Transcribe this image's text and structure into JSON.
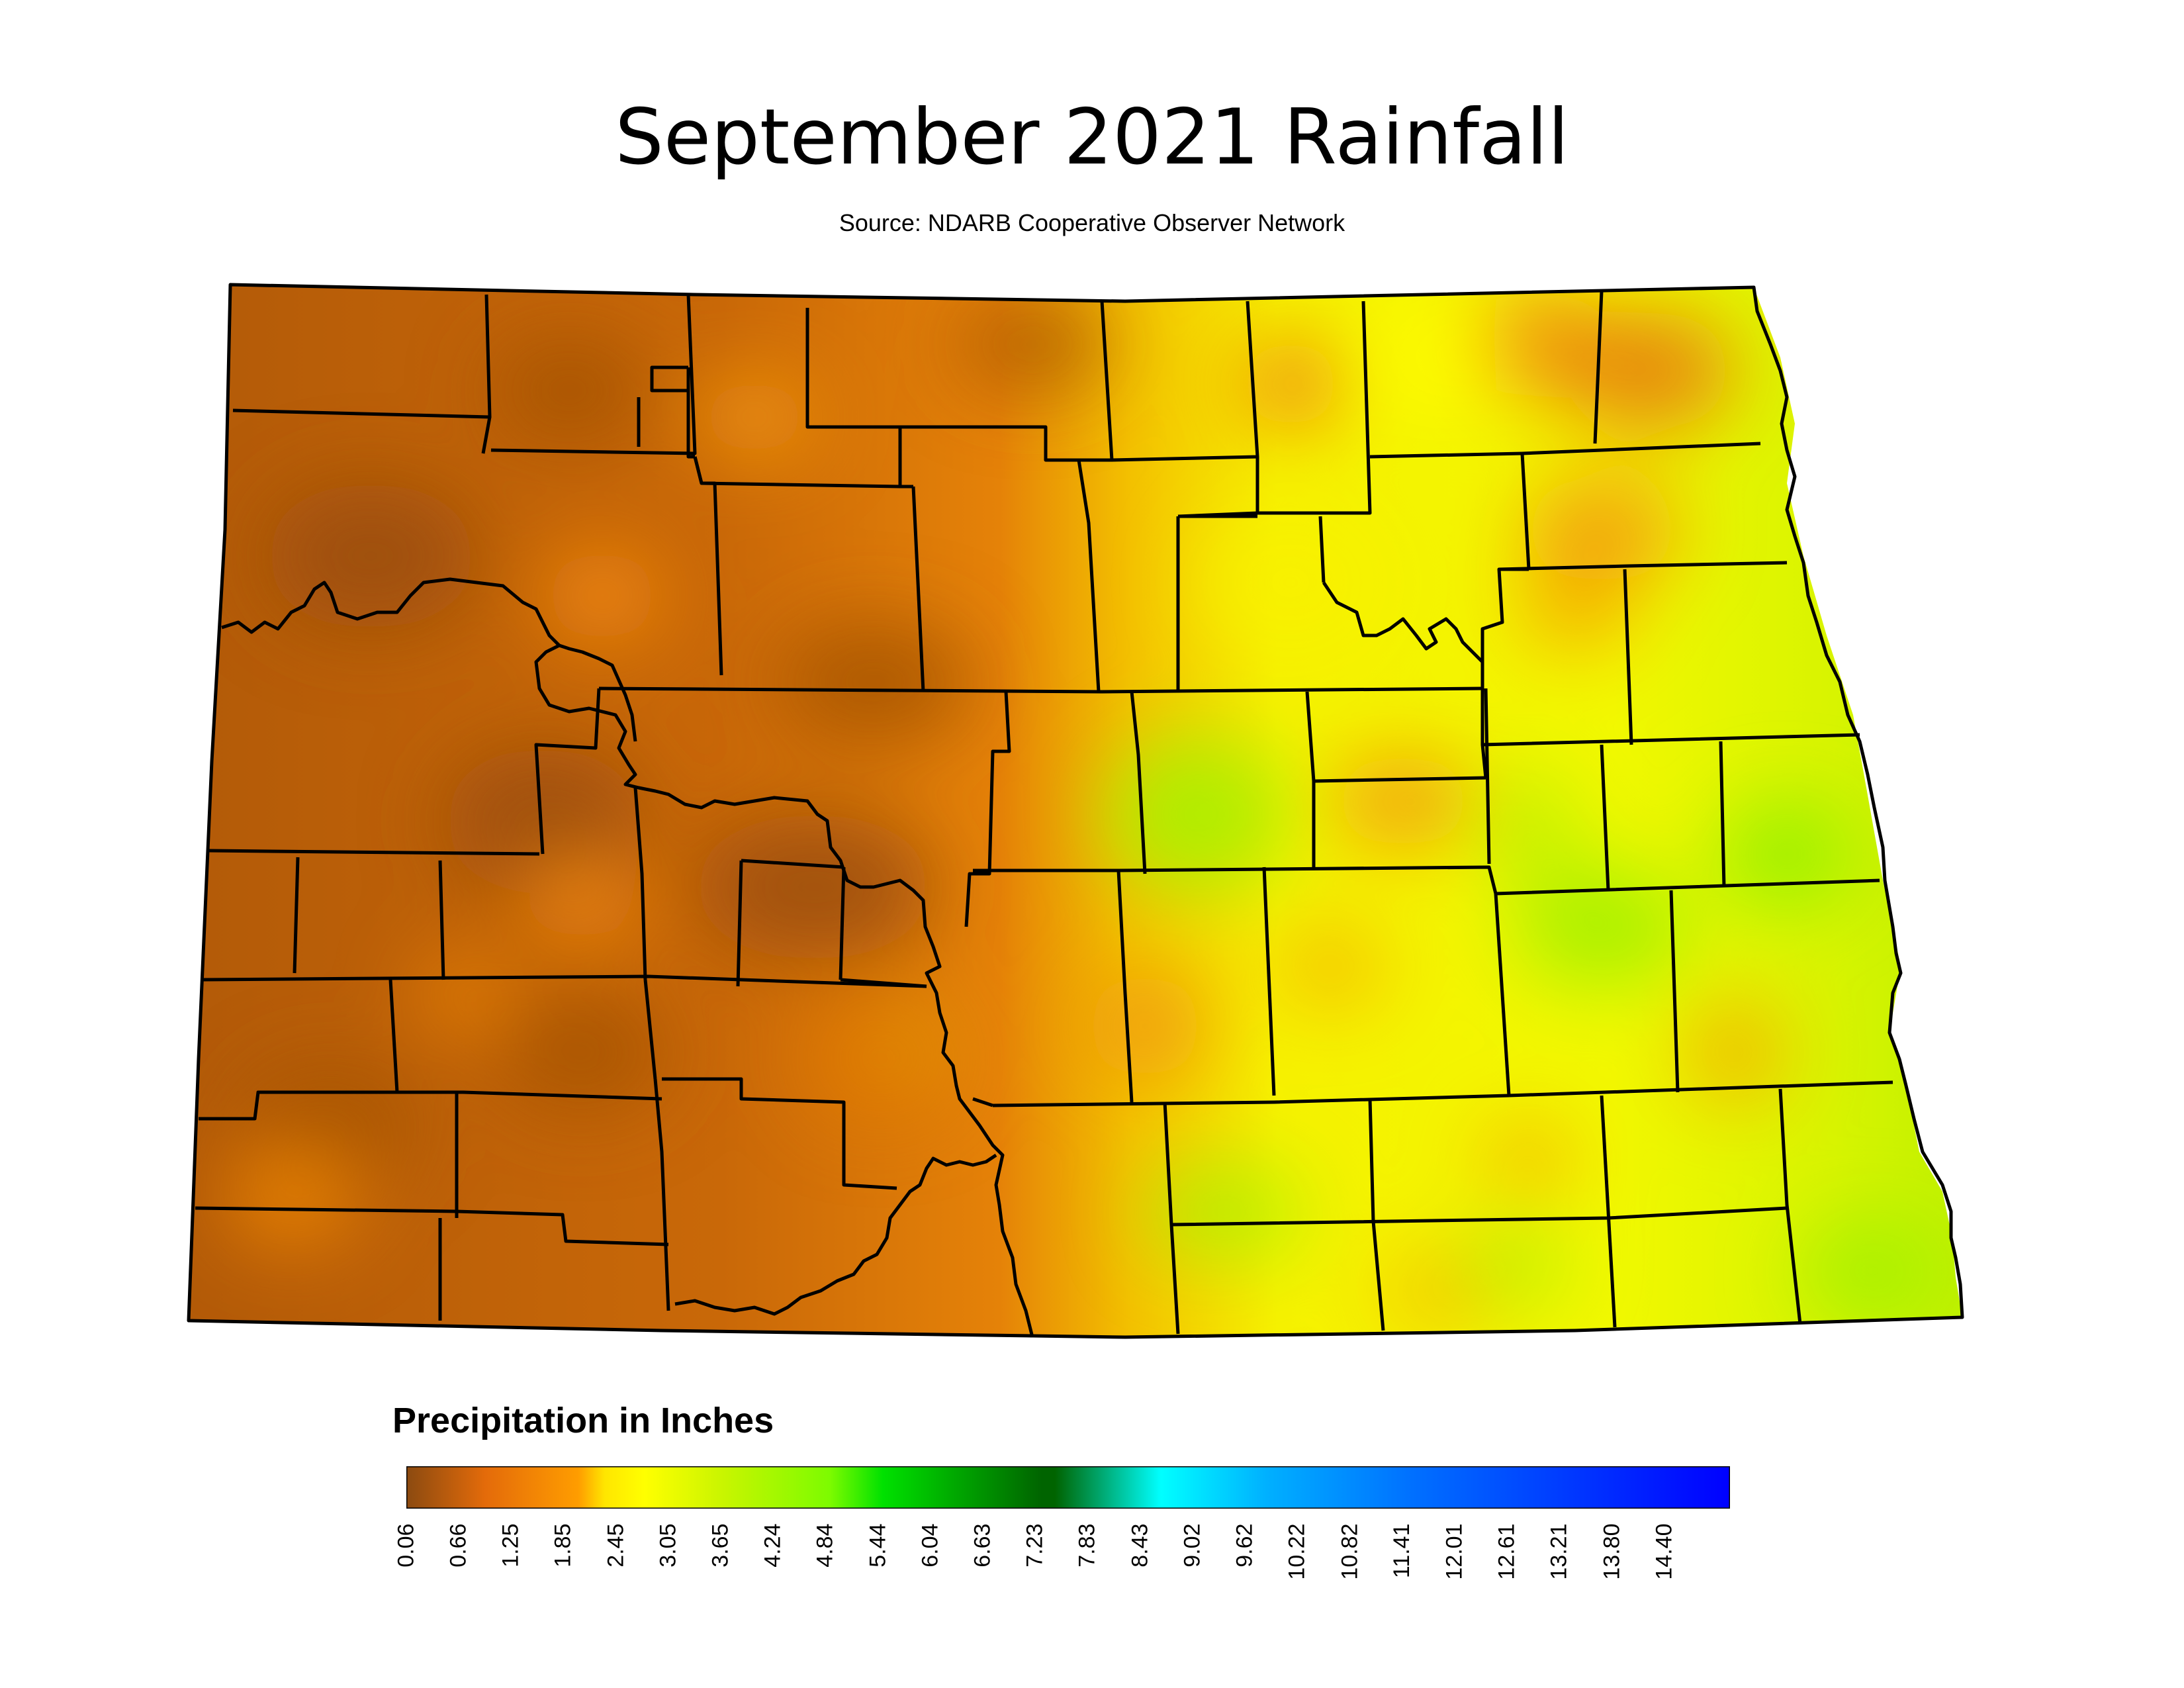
{
  "title": "September 2021 Rainfall",
  "source": "Source: NDARB Cooperative Observer Network",
  "legend": {
    "title": "Precipitation in Inches",
    "ticks": [
      "0.06",
      "0.66",
      "1.25",
      "1.85",
      "2.45",
      "3.05",
      "3.65",
      "4.24",
      "4.84",
      "5.44",
      "6.04",
      "6.63",
      "7.23",
      "7.83",
      "8.43",
      "9.02",
      "9.62",
      "10.22",
      "10.82",
      "11.41",
      "12.01",
      "12.61",
      "13.21",
      "13.80",
      "14.40"
    ],
    "colors": [
      "#8b4a10",
      "#e46b0a",
      "#ff9d00",
      "#ffe600",
      "#ffff00",
      "#c8f500",
      "#7dfb00",
      "#00e100",
      "#006400",
      "#00ffff",
      "#0070ff",
      "#0000ff"
    ]
  },
  "map_palette": {
    "dry": "#b55c08",
    "moderate": "#e98408",
    "wet": "#ffff00",
    "wettest": "#9ef500"
  }
}
